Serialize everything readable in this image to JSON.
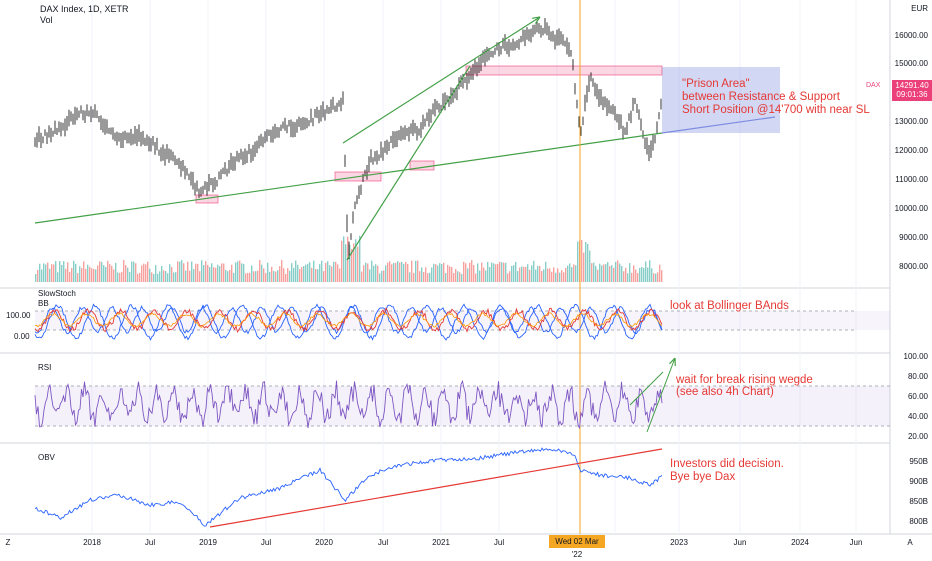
{
  "header": {
    "symbol_line": "DAX Index, 1D, XETR",
    "sub": "Vol"
  },
  "price_axis": {
    "currency": "EUR",
    "ticks": [
      "16000.00",
      "15000.00",
      "13000.00",
      "12000.00",
      "11000.00",
      "10000.00",
      "9000.00",
      "8000.00"
    ],
    "current": {
      "symbol": "DAX",
      "price": "14291.40",
      "time": "09:01:36"
    }
  },
  "panes": {
    "stoch": {
      "title": "SlowStoch",
      "sub": "BB",
      "ticks": [
        "100.00",
        "0.00"
      ]
    },
    "rsi": {
      "title": "RSI",
      "ticks": [
        "100.00",
        "80.00",
        "60.00",
        "40.00",
        "20.00"
      ]
    },
    "obv": {
      "title": "OBV",
      "ticks": [
        "950B",
        "900B",
        "850B",
        "800B"
      ]
    }
  },
  "time_axis": {
    "labels": [
      "2018",
      "Jul",
      "2019",
      "Jul",
      "2020",
      "Jul",
      "2021",
      "Jul",
      "2023",
      "Jun",
      "2024",
      "Jun"
    ],
    "crosshair_date": "Wed 02 Mar '22",
    "left_marker": "Z",
    "right_marker": "A"
  },
  "annotations": {
    "prison_1": "\"Prison Area\"",
    "prison_2": "between Resistance & Support",
    "prison_3": "Short Position @14'700 with near SL",
    "bollinger": "look at Bollinger BAnds",
    "wedge_1": "wait for break rising wegde",
    "wedge_2": "(see also 4h Chart)",
    "obv_1": "Investors did decision.",
    "obv_2": "Bye bye Dax"
  },
  "colors": {
    "candle": "#000000",
    "vol_up": "#26a69a",
    "vol_down": "#ef5350",
    "stoch_k": "#e53935",
    "bb": "#2962ff",
    "rsi": "#7e57c2",
    "obv": "#2962ff",
    "trend_green": "#43a047",
    "trend_red": "#e53935",
    "crosshair": "#f5a623",
    "zone": "#e91e63",
    "annotation": "#e53935"
  }
}
